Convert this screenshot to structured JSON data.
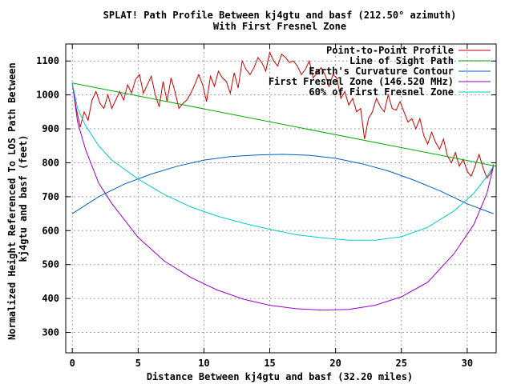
{
  "chart_data": {
    "type": "line",
    "title": "SPLAT! Path Profile Between kj4gtu and basf (212.50° azimuth)",
    "subtitle": "With First Fresnel Zone",
    "xlabel": "Distance Between kj4gtu and basf (32.20 miles)",
    "ylabel": "Normalized Height Referenced To LOS Path Between\nkj4gtu and basf (feet)",
    "xlim": [
      -0.5,
      32.2
    ],
    "ylim": [
      240,
      1150
    ],
    "x_ticks": [
      0,
      5,
      10,
      15,
      20,
      25,
      30
    ],
    "y_ticks": [
      300,
      400,
      500,
      600,
      700,
      800,
      900,
      1000,
      1100
    ],
    "grid": true,
    "legend_position": "top-right",
    "series": [
      {
        "name": "Point-to-Point Profile",
        "color": "#cc0000",
        "x": [
          0,
          0.3,
          0.6,
          0.9,
          1.2,
          1.5,
          1.8,
          2.1,
          2.4,
          2.7,
          3.0,
          3.3,
          3.6,
          3.9,
          4.2,
          4.5,
          4.8,
          5.1,
          5.4,
          5.7,
          6.0,
          6.3,
          6.6,
          6.9,
          7.2,
          7.5,
          7.8,
          8.1,
          8.4,
          8.7,
          9.0,
          9.3,
          9.6,
          9.9,
          10.2,
          10.5,
          10.8,
          11.1,
          11.4,
          11.7,
          12.0,
          12.3,
          12.6,
          12.9,
          13.2,
          13.5,
          13.8,
          14.1,
          14.4,
          14.7,
          15.0,
          15.3,
          15.6,
          15.9,
          16.2,
          16.5,
          16.8,
          17.1,
          17.4,
          17.7,
          18.0,
          18.3,
          18.6,
          18.9,
          19.2,
          19.5,
          19.8,
          20.1,
          20.4,
          20.7,
          21.0,
          21.3,
          21.6,
          21.9,
          22.2,
          22.5,
          22.8,
          23.1,
          23.4,
          23.7,
          24.0,
          24.3,
          24.6,
          24.9,
          25.2,
          25.5,
          25.8,
          26.1,
          26.4,
          26.7,
          27.0,
          27.3,
          27.6,
          27.9,
          28.2,
          28.5,
          28.8,
          29.1,
          29.4,
          29.7,
          30.0,
          30.3,
          30.6,
          30.9,
          31.2,
          31.5,
          31.8,
          32.0
        ],
        "y": [
          1035,
          960,
          905,
          950,
          925,
          985,
          1010,
          975,
          960,
          1000,
          960,
          985,
          1010,
          985,
          1030,
          1005,
          1045,
          1060,
          1005,
          1030,
          1055,
          1000,
          965,
          1040,
          980,
          1050,
          1010,
          960,
          975,
          985,
          1005,
          1030,
          1060,
          1030,
          980,
          1055,
          1025,
          1070,
          1050,
          1040,
          1005,
          1065,
          1020,
          1100,
          1075,
          1060,
          1080,
          1110,
          1095,
          1070,
          1125,
          1100,
          1085,
          1120,
          1110,
          1095,
          1100,
          1085,
          1060,
          1075,
          1100,
          1050,
          1065,
          1080,
          1060,
          1025,
          1060,
          1050,
          990,
          1010,
          970,
          990,
          950,
          960,
          870,
          930,
          950,
          990,
          965,
          950,
          1000,
          960,
          955,
          980,
          950,
          920,
          930,
          900,
          930,
          880,
          855,
          890,
          860,
          840,
          870,
          820,
          800,
          830,
          790,
          810,
          775,
          760,
          790,
          825,
          785,
          755,
          770,
          795
        ]
      },
      {
        "name": "Line of Sight Path",
        "color": "#00aa00",
        "x": [
          0,
          32.2
        ],
        "y": [
          1035,
          790
        ]
      },
      {
        "name": "Earth's Curvature Contour",
        "color": "#0060c0",
        "x": [
          0,
          2,
          4,
          6,
          8,
          10,
          12,
          14,
          16,
          18,
          20,
          22,
          24,
          26,
          28,
          30,
          32
        ],
        "y": [
          650,
          700,
          738,
          767,
          790,
          808,
          818,
          823,
          825,
          822,
          813,
          797,
          776,
          748,
          716,
          679,
          650
        ]
      },
      {
        "name": "First Fresnel Zone (146.520 MHz)",
        "color": "#9900cc",
        "x": [
          0,
          0.4,
          1,
          2,
          3,
          5,
          7,
          9,
          11,
          13,
          15,
          17,
          19,
          21,
          23,
          25,
          27,
          29,
          30.5,
          31.5,
          32
        ],
        "y": [
          1035,
          920,
          840,
          740,
          680,
          580,
          510,
          462,
          425,
          398,
          380,
          370,
          366,
          368,
          380,
          405,
          448,
          532,
          618,
          710,
          790
        ]
      },
      {
        "name": "60% of First Fresnel Zone",
        "color": "#00cccc",
        "x": [
          0,
          0.4,
          1,
          2,
          3,
          5,
          7,
          9,
          11,
          13,
          15,
          17,
          19,
          21,
          23,
          25,
          27,
          29,
          30.5,
          31.5,
          32
        ],
        "y": [
          1035,
          960,
          910,
          850,
          808,
          752,
          706,
          670,
          643,
          622,
          604,
          588,
          579,
          572,
          572,
          582,
          610,
          658,
          710,
          760,
          790
        ]
      }
    ]
  }
}
